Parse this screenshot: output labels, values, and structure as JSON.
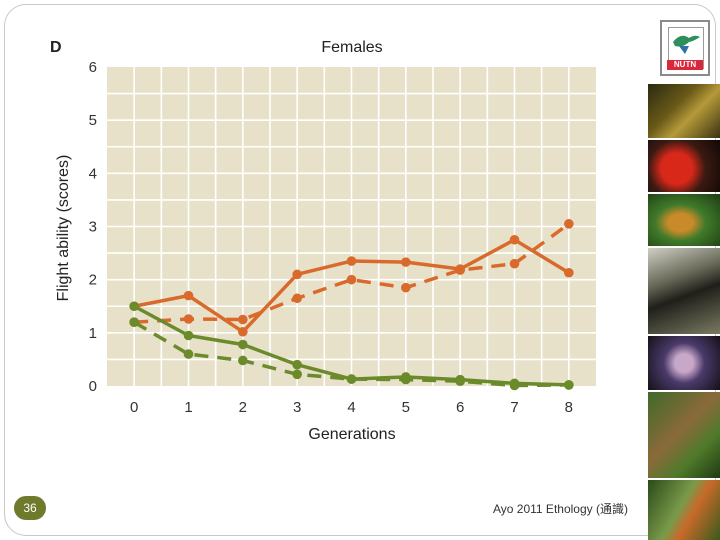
{
  "slide": {
    "page_number": "36",
    "footer": "Ayo 2011 Ethology (通識)",
    "logo_text": "NUTN",
    "thumbnails": [
      "frog-photo",
      "red-frog-photo",
      "tree-frog-photo",
      "marmoset-photo",
      "octopus-photo",
      "lizard-photo",
      "insect-photo"
    ]
  },
  "chart_data": {
    "type": "line",
    "panel_label": "D",
    "title": "Females",
    "xlabel": "Generations",
    "ylabel": "Flight ability (scores)",
    "x": [
      0,
      1,
      2,
      3,
      4,
      5,
      6,
      7,
      8
    ],
    "xlim": [
      -0.5,
      8.5
    ],
    "ylim": [
      0,
      6
    ],
    "xticks": [
      "0",
      "1",
      "2",
      "3",
      "4",
      "5",
      "6",
      "7",
      "8"
    ],
    "yticks": [
      "0",
      "1",
      "2",
      "3",
      "4",
      "5",
      "6"
    ],
    "grid": true,
    "legend": "none",
    "series": [
      {
        "color": "#d96a2b",
        "dash": "solid",
        "values": [
          1.5,
          1.7,
          1.02,
          2.1,
          2.35,
          2.33,
          2.2,
          2.75,
          2.13
        ]
      },
      {
        "color": "#d96a2b",
        "dash": "dashed",
        "values": [
          1.2,
          1.26,
          1.25,
          1.65,
          2.0,
          1.85,
          2.18,
          2.3,
          3.05
        ]
      },
      {
        "color": "#6b8a2a",
        "dash": "solid",
        "values": [
          1.5,
          0.95,
          0.78,
          0.4,
          0.13,
          0.17,
          0.12,
          0.05,
          0.02
        ]
      },
      {
        "color": "#6b8a2a",
        "dash": "dashed",
        "values": [
          1.2,
          0.6,
          0.48,
          0.22,
          0.13,
          0.12,
          0.09,
          0.01,
          0.02
        ]
      }
    ]
  }
}
